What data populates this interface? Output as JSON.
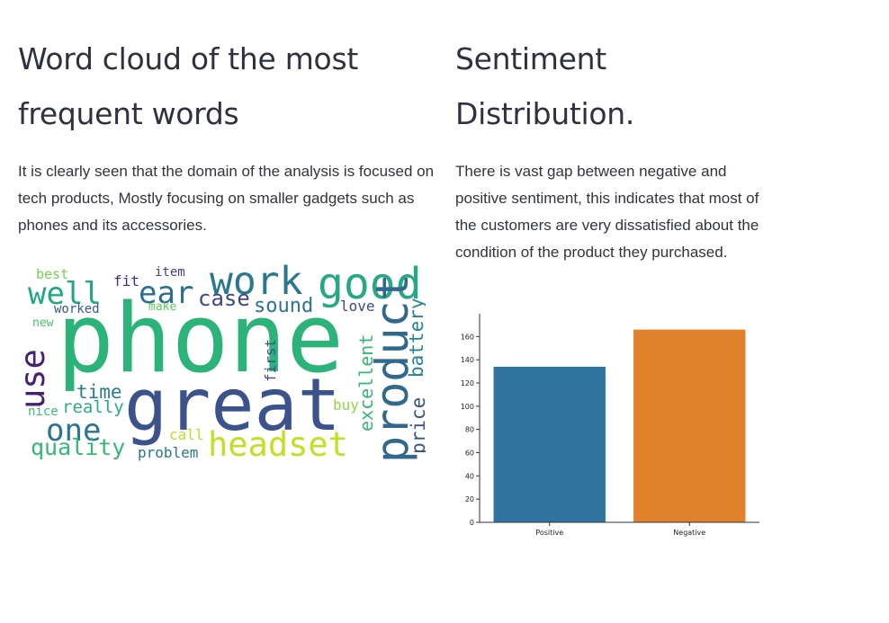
{
  "left": {
    "title_line1": "Word cloud of the most",
    "title_line2": "frequent words",
    "body": "It is clearly seen that the domain of the analysis is focused on tech products, Mostly focusing on smaller gadgets such as phones and its accessories."
  },
  "right": {
    "title_line1": "Sentiment",
    "title_line2": "Distribution.",
    "body": "There is vast gap between negative and positive sentiment, this indicates that most of the customers are very dissatisfied about the condition of the product they purchased."
  },
  "wordcloud": {
    "words": [
      {
        "text": "phone",
        "color": "#2cb37a"
      },
      {
        "text": "great",
        "color": "#3b528b"
      },
      {
        "text": "good",
        "color": "#26a883"
      },
      {
        "text": "work",
        "color": "#2a788e"
      },
      {
        "text": "product",
        "color": "#31688e"
      },
      {
        "text": "headset",
        "color": "#c2df23"
      },
      {
        "text": "use",
        "color": "#482071"
      },
      {
        "text": "well",
        "color": "#22a784"
      },
      {
        "text": "ear",
        "color": "#2e6e8e"
      },
      {
        "text": "one",
        "color": "#2b758e"
      },
      {
        "text": "quality",
        "color": "#35b779"
      },
      {
        "text": "case",
        "color": "#3f4788"
      },
      {
        "text": "sound",
        "color": "#2c738e"
      },
      {
        "text": "battery",
        "color": "#25858e"
      },
      {
        "text": "excellent",
        "color": "#35b779"
      },
      {
        "text": "price",
        "color": "#3b528b"
      },
      {
        "text": "time",
        "color": "#277f8e"
      },
      {
        "text": "really",
        "color": "#29af7f"
      },
      {
        "text": "first",
        "color": "#3d4d8a"
      },
      {
        "text": "buy",
        "color": "#90d743"
      },
      {
        "text": "love",
        "color": "#3e4989"
      },
      {
        "text": "problem",
        "color": "#2a768e"
      },
      {
        "text": "call",
        "color": "#b8de29"
      },
      {
        "text": "nice",
        "color": "#3fbc73"
      },
      {
        "text": "best",
        "color": "#75d054"
      },
      {
        "text": "fit",
        "color": "#472c7a"
      },
      {
        "text": "item",
        "color": "#433e85"
      },
      {
        "text": "worked",
        "color": "#38588c"
      },
      {
        "text": "make",
        "color": "#5ec962"
      },
      {
        "text": "new",
        "color": "#4ac16d"
      }
    ]
  },
  "chart_data": {
    "type": "bar",
    "categories": [
      "Positive",
      "Negative"
    ],
    "values": [
      134,
      166
    ],
    "colors": [
      "#3274a1",
      "#e1812c"
    ],
    "ylim": [
      0,
      175
    ],
    "yticks": [
      0,
      20,
      40,
      60,
      80,
      100,
      120,
      140,
      160
    ],
    "grid": false,
    "title": "",
    "xlabel": "",
    "ylabel": ""
  }
}
